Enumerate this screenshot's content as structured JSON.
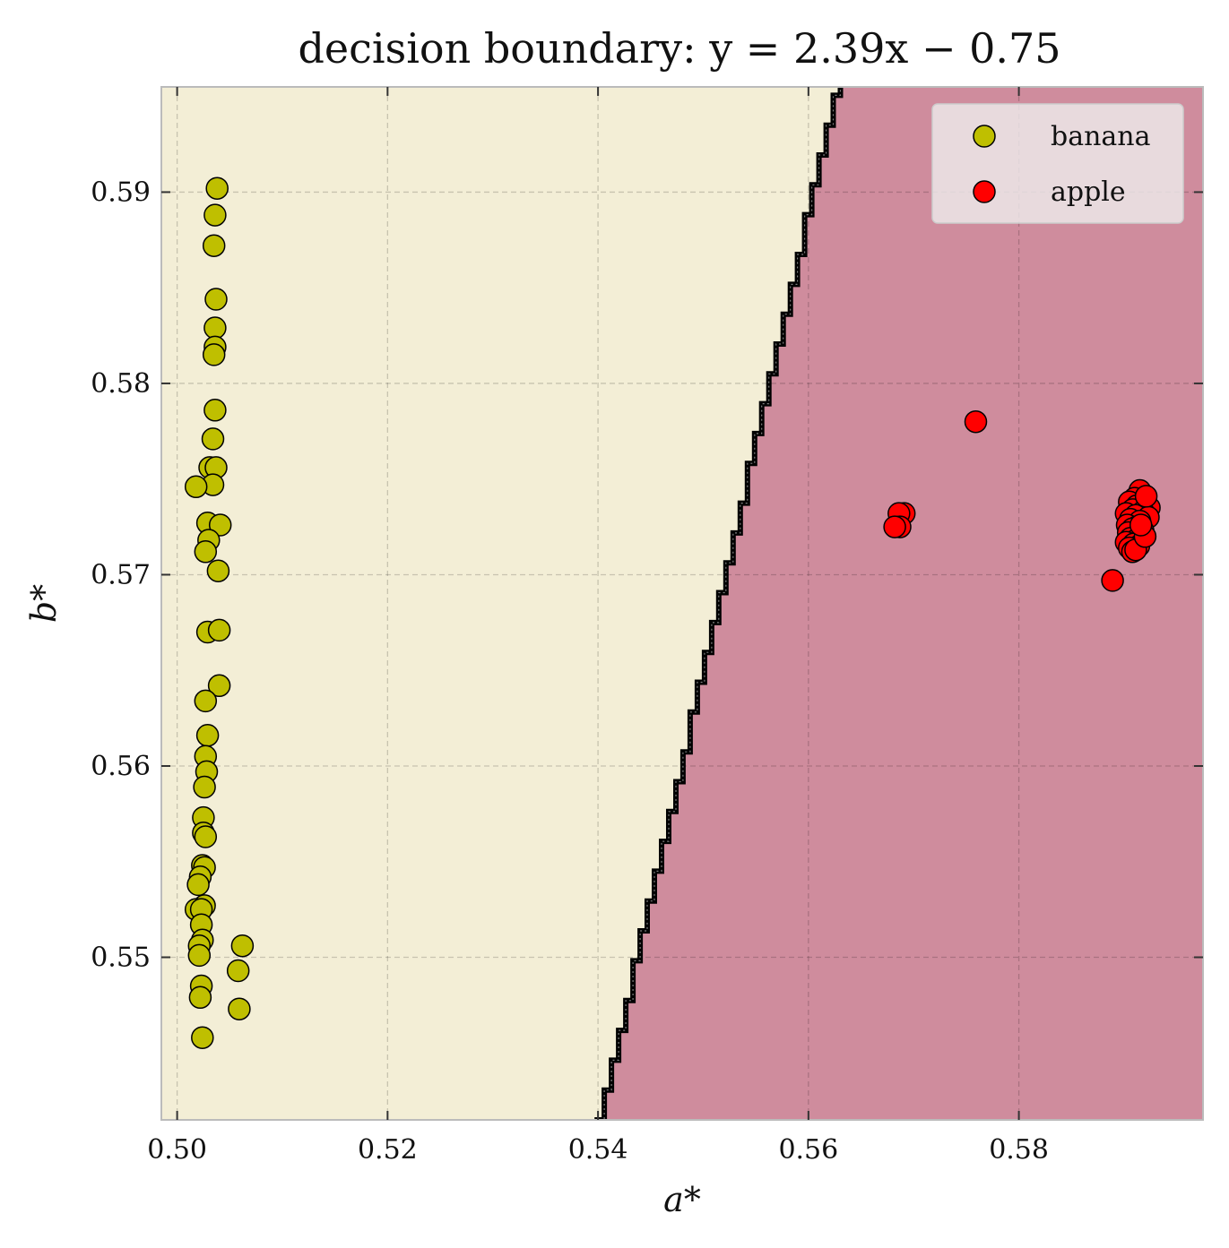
{
  "chart_data": {
    "type": "scatter",
    "title": "decision boundary: y = 2.39x − 0.75",
    "xlabel": "a*",
    "ylabel": "b*",
    "xlim": [
      0.4985,
      0.5975
    ],
    "ylim": [
      0.5415,
      0.5955
    ],
    "x_ticks": [
      0.5,
      0.52,
      0.54,
      0.56,
      0.58
    ],
    "y_ticks": [
      0.55,
      0.56,
      0.57,
      0.58,
      0.59
    ],
    "x_tick_labels": [
      "0.50",
      "0.52",
      "0.54",
      "0.56",
      "0.58"
    ],
    "y_tick_labels": [
      "0.55",
      "0.56",
      "0.57",
      "0.58",
      "0.59"
    ],
    "grid": true,
    "legend_position": "top-right",
    "boundary": {
      "slope": 2.39,
      "intercept": -0.75,
      "step_style": "staircase"
    },
    "regions": [
      {
        "name": "banana",
        "side": "left",
        "color": "#f3eed6"
      },
      {
        "name": "apple",
        "side": "right",
        "color": "#cf8c9d"
      }
    ],
    "series": [
      {
        "name": "banana",
        "color": "#bfbf00",
        "points": [
          [
            0.5038,
            0.5902
          ],
          [
            0.5036,
            0.5888
          ],
          [
            0.5035,
            0.5872
          ],
          [
            0.5037,
            0.5844
          ],
          [
            0.5036,
            0.5829
          ],
          [
            0.5036,
            0.5819
          ],
          [
            0.5035,
            0.5815
          ],
          [
            0.5036,
            0.5786
          ],
          [
            0.5034,
            0.5771
          ],
          [
            0.5031,
            0.5756
          ],
          [
            0.5037,
            0.5756
          ],
          [
            0.5034,
            0.5747
          ],
          [
            0.5018,
            0.5746
          ],
          [
            0.5029,
            0.5727
          ],
          [
            0.5041,
            0.5726
          ],
          [
            0.503,
            0.5718
          ],
          [
            0.5027,
            0.5712
          ],
          [
            0.5039,
            0.5702
          ],
          [
            0.5029,
            0.567
          ],
          [
            0.504,
            0.5671
          ],
          [
            0.504,
            0.5642
          ],
          [
            0.5027,
            0.5634
          ],
          [
            0.5029,
            0.5616
          ],
          [
            0.5027,
            0.5605
          ],
          [
            0.5028,
            0.5597
          ],
          [
            0.5026,
            0.5589
          ],
          [
            0.5025,
            0.5573
          ],
          [
            0.5025,
            0.5565
          ],
          [
            0.5027,
            0.5563
          ],
          [
            0.5024,
            0.5548
          ],
          [
            0.5026,
            0.5547
          ],
          [
            0.5022,
            0.5542
          ],
          [
            0.502,
            0.5538
          ],
          [
            0.5026,
            0.5527
          ],
          [
            0.5018,
            0.5525
          ],
          [
            0.5023,
            0.5525
          ],
          [
            0.5023,
            0.5517
          ],
          [
            0.5024,
            0.5509
          ],
          [
            0.5021,
            0.5506
          ],
          [
            0.5021,
            0.5501
          ],
          [
            0.5062,
            0.5506
          ],
          [
            0.5058,
            0.5493
          ],
          [
            0.5023,
            0.5485
          ],
          [
            0.5022,
            0.5479
          ],
          [
            0.5059,
            0.5473
          ],
          [
            0.5024,
            0.5458
          ]
        ]
      },
      {
        "name": "apple",
        "color": "#ff0000",
        "points": [
          [
            0.5759,
            0.578
          ],
          [
            0.5691,
            0.5732
          ],
          [
            0.5686,
            0.5732
          ],
          [
            0.5687,
            0.5725
          ],
          [
            0.5682,
            0.5725
          ],
          [
            0.5889,
            0.5697
          ],
          [
            0.5915,
            0.5744
          ],
          [
            0.591,
            0.574
          ],
          [
            0.592,
            0.5739
          ],
          [
            0.5905,
            0.5738
          ],
          [
            0.5912,
            0.5736
          ],
          [
            0.5924,
            0.5735
          ],
          [
            0.5908,
            0.5734
          ],
          [
            0.5918,
            0.5733
          ],
          [
            0.5902,
            0.5732
          ],
          [
            0.5911,
            0.5731
          ],
          [
            0.5923,
            0.573
          ],
          [
            0.5906,
            0.5729
          ],
          [
            0.5915,
            0.5728
          ],
          [
            0.5903,
            0.5726
          ],
          [
            0.5912,
            0.5725
          ],
          [
            0.5908,
            0.5724
          ],
          [
            0.5918,
            0.5723
          ],
          [
            0.5904,
            0.5722
          ],
          [
            0.5913,
            0.5721
          ],
          [
            0.5906,
            0.5719
          ],
          [
            0.5911,
            0.5718
          ],
          [
            0.5902,
            0.5717
          ],
          [
            0.5909,
            0.5716
          ],
          [
            0.5914,
            0.5715
          ],
          [
            0.5905,
            0.5714
          ],
          [
            0.5908,
            0.5712
          ],
          [
            0.5911,
            0.5713
          ],
          [
            0.592,
            0.572
          ],
          [
            0.5916,
            0.5726
          ],
          [
            0.5921,
            0.5741
          ]
        ]
      }
    ]
  }
}
